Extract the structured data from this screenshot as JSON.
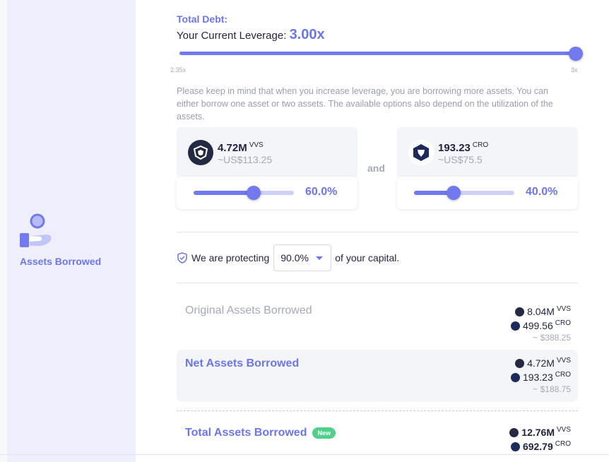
{
  "sidebar": {
    "section_label": "Assets Borrowed"
  },
  "leverage": {
    "total_debt_label": "Total Debt:",
    "current_label": "Your Current Leverage:",
    "current_value": "3.00x",
    "min_label": "2.35x",
    "max_label": "3x",
    "fraction": 1.0
  },
  "notice": "Please keep in mind that when you increase leverage, you are borrowing more assets. You can either borrow one asset or two assets. The available options also depend on the utilization of the assets.",
  "and_label": "and",
  "assets": [
    {
      "amount": "4.72M",
      "symbol": "VVS",
      "usd": "~US$113.25",
      "percent": "60.0%",
      "fraction": 0.6,
      "icon": "vvs-icon"
    },
    {
      "amount": "193.23",
      "symbol": "CRO",
      "usd": "~US$75.5",
      "percent": "40.0%",
      "fraction": 0.4,
      "icon": "cro-icon"
    }
  ],
  "protect": {
    "prefix": "We are protecting",
    "value": "90.0%",
    "suffix": "of your capital."
  },
  "summary": {
    "original": {
      "label": "Original Assets Borrowed",
      "vvs": "8.04M",
      "cro": "499.56",
      "usd": "~ $388.25"
    },
    "net": {
      "label": "Net Assets Borrowed",
      "vvs": "4.72M",
      "cro": "193.23",
      "usd": "~ $188.75"
    },
    "total": {
      "label": "Total Assets Borrowed",
      "badge": "New",
      "vvs": "12.76M",
      "cro": "692.79"
    },
    "vvs_symbol": "VVS",
    "cro_symbol": "CRO"
  },
  "colors": {
    "accent": "#6d76e8",
    "new_badge": "#4fd18b"
  }
}
